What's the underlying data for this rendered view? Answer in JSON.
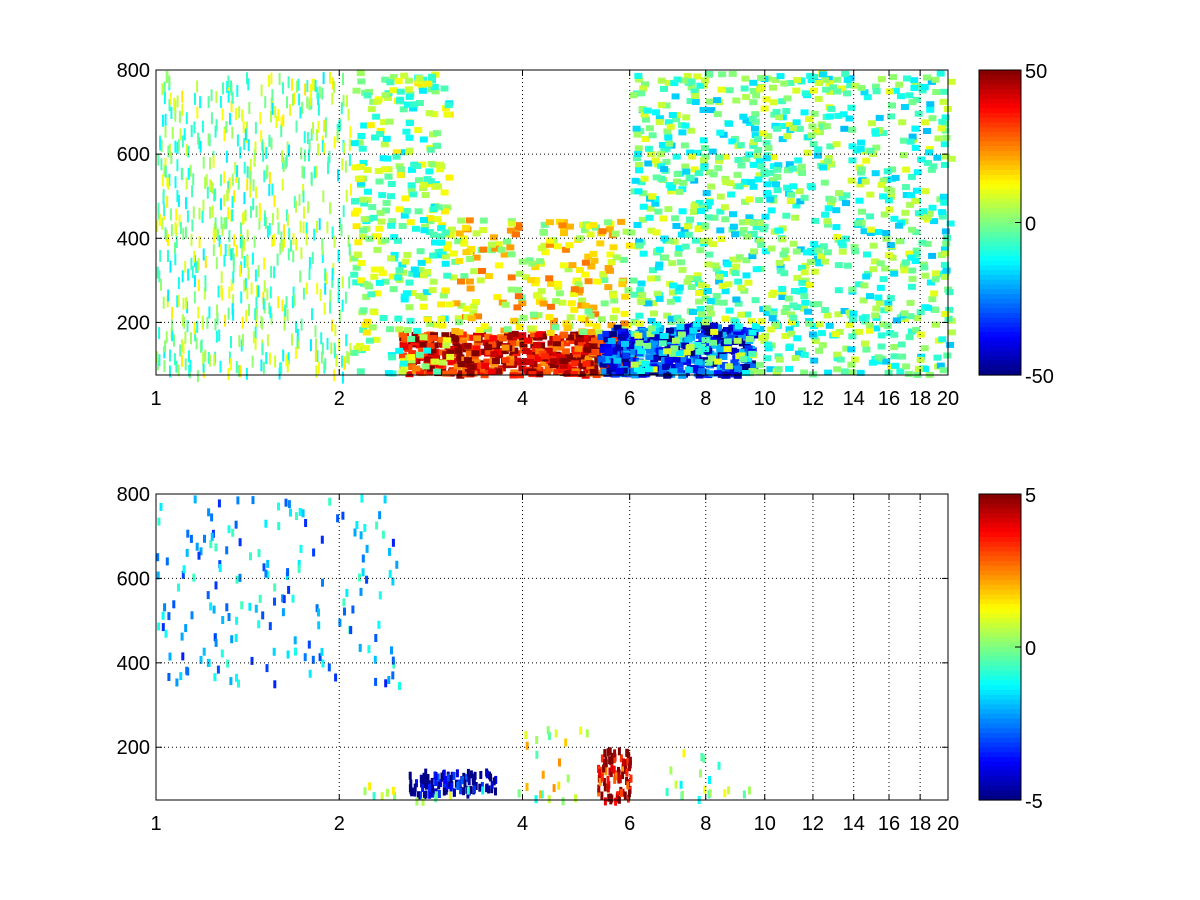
{
  "chart_data": [
    {
      "type": "heatmap",
      "title": "",
      "xlabel": "",
      "ylabel": "",
      "xlim": [
        1,
        20
      ],
      "ylim": [
        75,
        800
      ],
      "x_scale": "log",
      "x_ticks": [
        1,
        2,
        4,
        6,
        8,
        10,
        12,
        14,
        16,
        18,
        20
      ],
      "x_tick_labels": [
        "1",
        "2",
        "4",
        "6",
        "8",
        "10",
        "12",
        "14",
        "16",
        "18",
        "20"
      ],
      "y_ticks": [
        200,
        400,
        600,
        800
      ],
      "y_tick_labels": [
        "200",
        "400",
        "600",
        "800"
      ],
      "grid": true,
      "grid_style": "dotted",
      "colormap": "jet",
      "colorbar": {
        "range": [
          -50,
          50
        ],
        "ticks": [
          50,
          0,
          -50
        ],
        "tick_labels": [
          "50",
          "0",
          "-50"
        ]
      },
      "value_regions": [
        {
          "description": "strong positive band",
          "x": [
            2.5,
            6.0
          ],
          "y": [
            80,
            180
          ],
          "value": 40
        },
        {
          "description": "positive, decaying with height",
          "x": [
            3.0,
            6.0
          ],
          "y": [
            180,
            450
          ],
          "value": 12
        },
        {
          "description": "negative patch",
          "x": [
            5.3,
            9.5
          ],
          "y": [
            80,
            200
          ],
          "value": -35
        },
        {
          "description": "sparse mixed values",
          "x": [
            1.0,
            3.0
          ],
          "y": [
            80,
            800
          ],
          "value": 0
        },
        {
          "description": "sparse near-zero values",
          "x": [
            6.0,
            20.0
          ],
          "y": [
            80,
            800
          ],
          "value": -4
        }
      ]
    },
    {
      "type": "heatmap",
      "title": "",
      "xlabel": "",
      "ylabel": "",
      "xlim": [
        1,
        20
      ],
      "ylim": [
        75,
        800
      ],
      "x_scale": "log",
      "x_ticks": [
        1,
        2,
        4,
        6,
        8,
        10,
        12,
        14,
        16,
        18,
        20
      ],
      "x_tick_labels": [
        "1",
        "2",
        "4",
        "6",
        "8",
        "10",
        "12",
        "14",
        "16",
        "18",
        "20"
      ],
      "y_ticks": [
        200,
        400,
        600,
        800
      ],
      "y_tick_labels": [
        "200",
        "400",
        "600",
        "800"
      ],
      "grid": true,
      "grid_style": "dotted",
      "colormap": "jet",
      "colorbar": {
        "range": [
          -5,
          5
        ],
        "ticks": [
          5,
          0,
          -5
        ],
        "tick_labels": [
          "5",
          "0",
          "-5"
        ]
      },
      "value_regions": [
        {
          "description": "negative low-level band",
          "x": [
            2.6,
            3.6
          ],
          "y": [
            95,
            150
          ],
          "value": -4.5
        },
        {
          "description": "near-zero low-level band",
          "x": [
            2.1,
            6.0
          ],
          "y": [
            80,
            120
          ],
          "value": 0
        },
        {
          "description": "mixed cluster",
          "x": [
            4.0,
            5.2
          ],
          "y": [
            80,
            250
          ],
          "value": 1
        },
        {
          "description": "strong positive patch",
          "x": [
            5.3,
            6.0
          ],
          "y": [
            80,
            200
          ],
          "value": 4
        },
        {
          "description": "scattered mixed values",
          "x": [
            6.5,
            9.5
          ],
          "y": [
            80,
            200
          ],
          "value": 0
        },
        {
          "description": "sparse streaks",
          "x": [
            1.0,
            2.5
          ],
          "y": [
            350,
            800
          ],
          "value": -2
        }
      ]
    }
  ]
}
